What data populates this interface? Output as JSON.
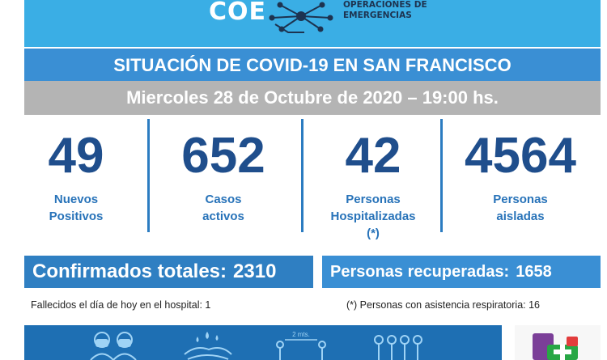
{
  "header": {
    "logo_text": "COE",
    "brand_line1": "OPERACIONES DE",
    "brand_line2": "EMERGENCIAS"
  },
  "title": "SITUACIÓN DE COVID-19 EN SAN FRANCISCO",
  "date_line": "Miercoles 28 de Octubre de 2020 – 19:00 hs.",
  "stats": [
    {
      "value": "49",
      "label_lines": [
        "Nuevos",
        "Positivos"
      ]
    },
    {
      "value": "652",
      "label_lines": [
        "Casos",
        "activos"
      ]
    },
    {
      "value": "42",
      "label_lines": [
        "Personas",
        "Hospitalizadas",
        "(*)"
      ]
    },
    {
      "value": "4564",
      "label_lines": [
        "Personas",
        "aisladas"
      ]
    }
  ],
  "totals": {
    "confirmed_label": "Confirmados totales:",
    "confirmed_value": "2310",
    "recovered_label": "Personas recuperadas:",
    "recovered_value": "1658"
  },
  "footnotes": {
    "deaths": "Fallecidos el día de hoy en el hospital: 1",
    "respiratory": "(*) Personas con asistencia respiratoria: 16"
  },
  "bottom": {
    "distance_label": "2 mts.",
    "icons": [
      "masks-icon",
      "hand-washing-icon",
      "social-distance-icon",
      "group-icon"
    ]
  },
  "colors": {
    "header_blue": "#3aaee5",
    "title_blue": "#3a8fd4",
    "date_gray": "#b4b4b4",
    "number_navy": "#1f4e8c",
    "label_blue": "#2873b9",
    "confirmed_blue": "#2f7fc2",
    "bottom_blue": "#1e6fb3"
  }
}
